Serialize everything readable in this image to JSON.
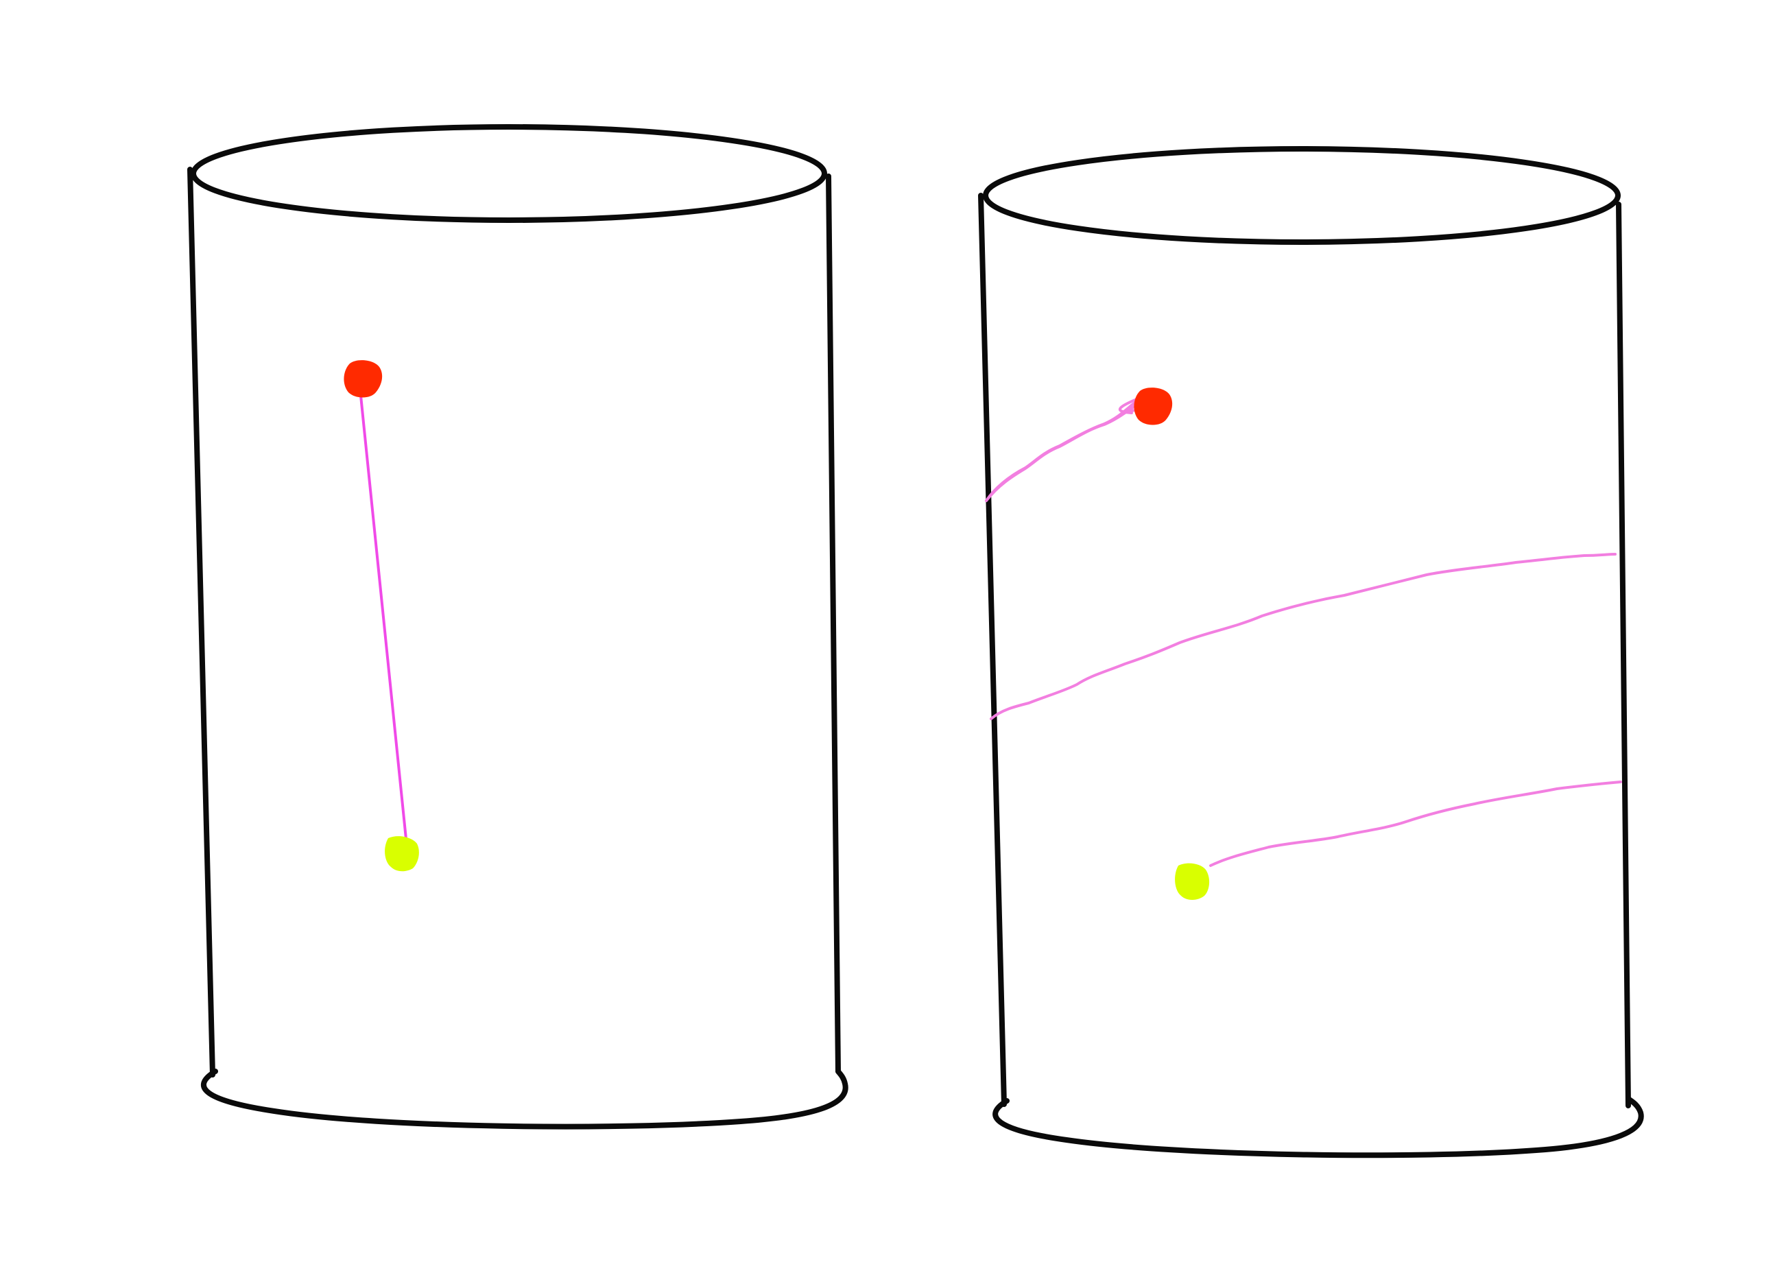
{
  "colors": {
    "background": "#ffffff",
    "outline": "#0a0a0a",
    "start_point": "#ff2a00",
    "end_point": "#d9ff00",
    "straight_path": "#f04ae8",
    "helical_path": "#f27fe0"
  },
  "figures": [
    {
      "id": "left-cylinder",
      "path_type": "straight",
      "points": [
        "start_point",
        "end_point"
      ]
    },
    {
      "id": "right-cylinder",
      "path_type": "helical",
      "points": [
        "start_point",
        "end_point"
      ]
    }
  ]
}
